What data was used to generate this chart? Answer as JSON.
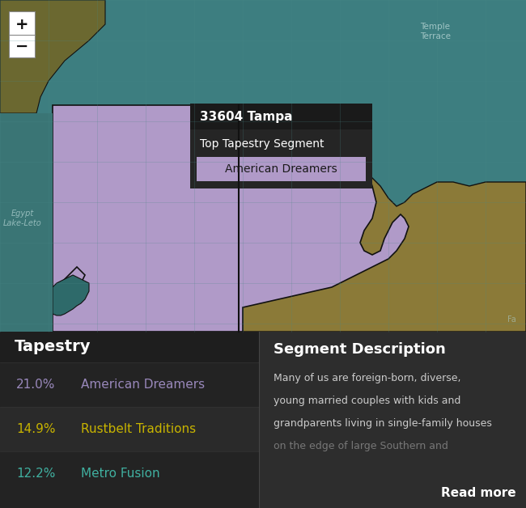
{
  "fig_width": 6.5,
  "fig_height": 6.28,
  "teal_color": "#3d7e80",
  "teal_dark_color": "#2e6a6a",
  "teal_medium": "#3a7575",
  "purple_color": "#b09ac8",
  "olive_color": "#8b7a38",
  "olive_dark_color": "#6b6830",
  "bg_dark_color": "#1e1e1e",
  "bottom_left_bg": "#252525",
  "bottom_right_bg": "#2e2e2e",
  "tapestry_row1_bg": "#252525",
  "tapestry_row2_bg": "#303030",
  "tapestry_row3_bg": "#252525",
  "border_color": "#111111",
  "tooltip_bg": "#1a1a1a",
  "tooltip_title": "33604 Tampa",
  "tooltip_subtitle": "Top Tapestry Segment",
  "tooltip_tag": "American Dreamers",
  "tooltip_tag_bg": "#b09ac8",
  "tooltip_tag_text": "#1a1a1a",
  "bottom_left_title": "Tapestry",
  "segment_description_title": "Segment Description",
  "read_more_text": "Read more",
  "map_label_temple": "Temple\nTerrace",
  "map_label_egypt": "Egypt\nLake-Leto",
  "map_label_far": "Fa",
  "grid_color": "#4a8888",
  "tapestry_items": [
    {
      "pct": "21.0%",
      "name": "American Dreamers",
      "pct_color": "#9988bb",
      "name_color": "#9988bb"
    },
    {
      "pct": "14.9%",
      "name": "Rustbelt Traditions",
      "pct_color": "#c8b400",
      "name_color": "#c8b400"
    },
    {
      "pct": "12.2%",
      "name": "Metro Fusion",
      "pct_color": "#40b0a0",
      "name_color": "#40b0a0"
    }
  ],
  "desc_lines": [
    {
      "text": "Many of us are foreign-born, diverse,",
      "alpha": 1.0
    },
    {
      "text": "young married couples with kids and",
      "alpha": 1.0
    },
    {
      "text": "grandparents living in single-family houses",
      "alpha": 1.0
    },
    {
      "text": "on the edge of large Southern and",
      "alpha": 0.5
    }
  ]
}
